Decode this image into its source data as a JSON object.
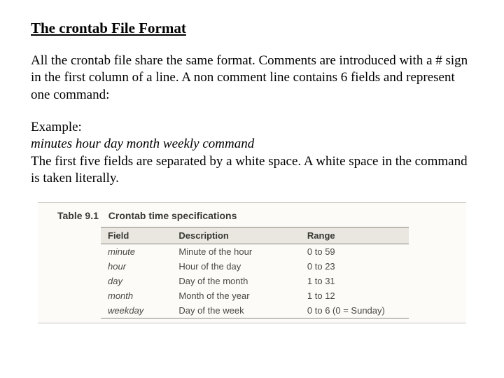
{
  "title": "The crontab File Format",
  "para1": "All the crontab file share the same format. Comments are introduced with a # sign in the first column of a line.  A non comment line contains 6 fields and represent one command:",
  "example_label": "Example:",
  "syntax_line": "minutes hour day month weekly command",
  "para2": "The first five fields are separated by a white space.  A white space in the command is taken literally.",
  "table": {
    "caption_number": "Table 9.1",
    "caption_title": "Crontab time specifications",
    "columns": [
      "Field",
      "Description",
      "Range"
    ],
    "rows": [
      [
        "minute",
        "Minute of the hour",
        "0 to 59"
      ],
      [
        "hour",
        "Hour of the day",
        "0 to 23"
      ],
      [
        "day",
        "Day of the month",
        "1 to 31"
      ],
      [
        "month",
        "Month of the year",
        "1 to 12"
      ],
      [
        "weekday",
        "Day of the week",
        "0 to 6 (0 = Sunday)"
      ]
    ],
    "header_bg": "#e9e7e0",
    "border_color": "#8a877e",
    "table_bg": "#fcfbf8",
    "text_color": "#4a4740"
  }
}
